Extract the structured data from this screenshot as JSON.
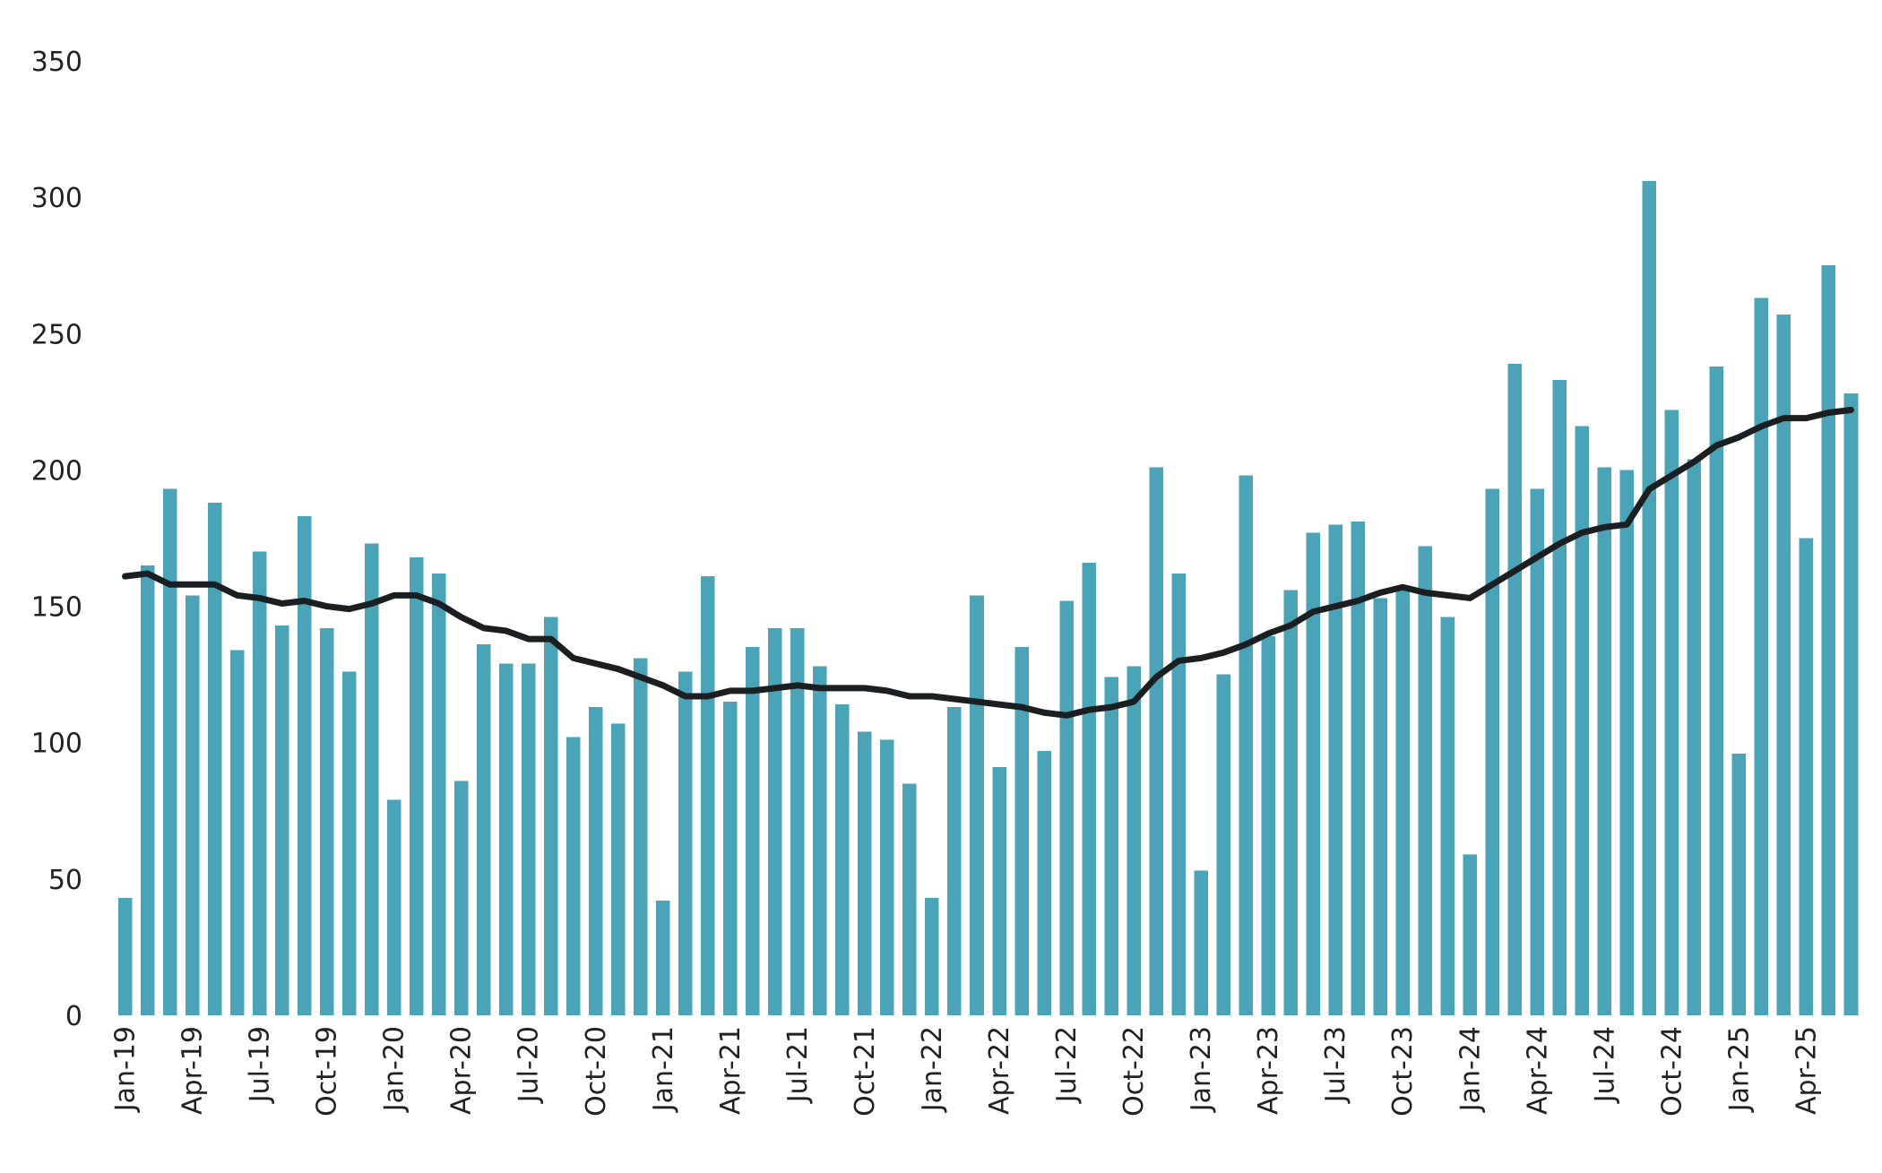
{
  "chart_data": {
    "type": "bar",
    "title": "",
    "xlabel": "",
    "ylabel": "",
    "ylim": [
      0,
      350
    ],
    "yticks": [
      0,
      50,
      100,
      150,
      200,
      250,
      300,
      350
    ],
    "grid": false,
    "legend": "none",
    "colors": {
      "bars": "#4aa3b7",
      "line": "#1c1f22",
      "text": "#222222"
    },
    "categories": [
      "Jan-19",
      "Feb-19",
      "Mar-19",
      "Apr-19",
      "May-19",
      "Jun-19",
      "Jul-19",
      "Aug-19",
      "Sep-19",
      "Oct-19",
      "Nov-19",
      "Dec-19",
      "Jan-20",
      "Feb-20",
      "Mar-20",
      "Apr-20",
      "May-20",
      "Jun-20",
      "Jul-20",
      "Aug-20",
      "Sep-20",
      "Oct-20",
      "Nov-20",
      "Dec-20",
      "Jan-21",
      "Feb-21",
      "Mar-21",
      "Apr-21",
      "May-21",
      "Jun-21",
      "Jul-21",
      "Aug-21",
      "Sep-21",
      "Oct-21",
      "Nov-21",
      "Dec-21",
      "Jan-22",
      "Feb-22",
      "Mar-22",
      "Apr-22",
      "May-22",
      "Jun-22",
      "Jul-22",
      "Aug-22",
      "Sep-22",
      "Oct-22",
      "Nov-22",
      "Dec-22",
      "Jan-23",
      "Feb-23",
      "Mar-23",
      "Apr-23",
      "May-23",
      "Jun-23",
      "Jul-23",
      "Aug-23",
      "Sep-23",
      "Oct-23",
      "Nov-23",
      "Dec-23",
      "Jan-24",
      "Feb-24",
      "Mar-24",
      "Apr-24",
      "May-24",
      "Jun-24",
      "Jul-24",
      "Aug-24",
      "Sep-24",
      "Oct-24",
      "Nov-24",
      "Dec-24",
      "Jan-25",
      "Feb-25",
      "Mar-25",
      "Apr-25",
      "May-25",
      "Jun-25"
    ],
    "tick_labels": [
      {
        "index": 0,
        "label": "Jan-19"
      },
      {
        "index": 3,
        "label": "Apr-19"
      },
      {
        "index": 6,
        "label": "Jul-19"
      },
      {
        "index": 9,
        "label": "Oct-19"
      },
      {
        "index": 12,
        "label": "Jan-20"
      },
      {
        "index": 15,
        "label": "Apr-20"
      },
      {
        "index": 18,
        "label": "Jul-20"
      },
      {
        "index": 21,
        "label": "Oct-20"
      },
      {
        "index": 24,
        "label": "Jan-21"
      },
      {
        "index": 27,
        "label": "Apr-21"
      },
      {
        "index": 30,
        "label": "Jul-21"
      },
      {
        "index": 33,
        "label": "Oct-21"
      },
      {
        "index": 36,
        "label": "Jan-22"
      },
      {
        "index": 39,
        "label": "Apr-22"
      },
      {
        "index": 42,
        "label": "Jul-22"
      },
      {
        "index": 45,
        "label": "Oct-22"
      },
      {
        "index": 48,
        "label": "Jan-23"
      },
      {
        "index": 51,
        "label": "Apr-23"
      },
      {
        "index": 54,
        "label": "Jul-23"
      },
      {
        "index": 57,
        "label": "Oct-23"
      },
      {
        "index": 60,
        "label": "Jan-24"
      },
      {
        "index": 63,
        "label": "Apr-24"
      },
      {
        "index": 66,
        "label": "Jul-24"
      },
      {
        "index": 69,
        "label": "Oct-24"
      },
      {
        "index": 72,
        "label": "Jan-25"
      },
      {
        "index": 75,
        "label": "Apr-25"
      }
    ],
    "series": [
      {
        "type": "bar",
        "values": [
          43,
          165,
          193,
          154,
          188,
          134,
          170,
          143,
          183,
          142,
          126,
          173,
          79,
          168,
          162,
          86,
          136,
          129,
          129,
          146,
          102,
          113,
          107,
          131,
          42,
          126,
          161,
          115,
          135,
          142,
          142,
          128,
          114,
          104,
          101,
          85,
          43,
          113,
          154,
          91,
          135,
          97,
          152,
          166,
          124,
          128,
          201,
          162,
          53,
          125,
          198,
          139,
          156,
          177,
          180,
          181,
          153,
          157,
          172,
          146,
          59,
          193,
          239,
          193,
          233,
          216,
          201,
          200,
          306,
          222,
          204,
          238,
          96,
          263,
          257,
          175,
          275,
          228
        ]
      },
      {
        "type": "line",
        "values": [
          161,
          162,
          158,
          158,
          158,
          154,
          153,
          151,
          152,
          150,
          149,
          151,
          154,
          154,
          151,
          146,
          142,
          141,
          138,
          138,
          131,
          129,
          127,
          124,
          121,
          117,
          117,
          119,
          119,
          120,
          121,
          120,
          120,
          120,
          119,
          117,
          117,
          116,
          115,
          114,
          113,
          111,
          110,
          112,
          113,
          115,
          124,
          130,
          131,
          133,
          136,
          140,
          143,
          148,
          150,
          152,
          155,
          157,
          155,
          154,
          153,
          158,
          163,
          168,
          173,
          177,
          179,
          180,
          193,
          198,
          203,
          209,
          212,
          216,
          219,
          219,
          221,
          222
        ]
      }
    ]
  }
}
